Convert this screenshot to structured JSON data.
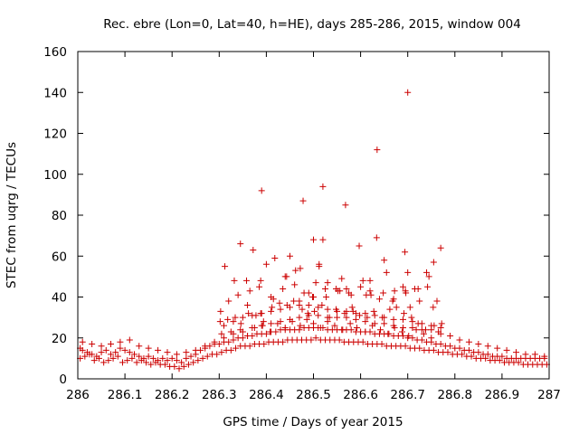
{
  "chart_data": {
    "type": "scatter",
    "title": "Rec. ebre (Lon=0, Lat=40, h=HE), days 285-286, 2015, window 004",
    "xlabel": "GPS time / Days of year 2015",
    "ylabel": "STEC from uqrg / TECUs",
    "xlim": [
      286,
      287
    ],
    "ylim": [
      0,
      160
    ],
    "xticks": [
      286,
      286.1,
      286.2,
      286.3,
      286.4,
      286.5,
      286.6,
      286.7,
      286.8,
      286.9,
      287
    ],
    "xtick_labels": [
      "286",
      "286.1",
      "286.2",
      "286.3",
      "286.4",
      "286.5",
      "286.6",
      "286.7",
      "286.8",
      "286.9",
      "287"
    ],
    "yticks": [
      0,
      20,
      40,
      60,
      80,
      100,
      120,
      140,
      160
    ],
    "ytick_labels": [
      "0",
      "20",
      "40",
      "60",
      "80",
      "100",
      "120",
      "140",
      "160"
    ],
    "grid": false,
    "marker": "+",
    "point_color": "#cc0000",
    "series": [
      {
        "x": [
          286.005,
          286.01,
          286.02,
          286.03,
          286.04,
          286.05,
          286.06,
          286.07,
          286.08,
          286.09,
          286.1,
          286.11,
          286.12,
          286.13,
          286.14,
          286.15,
          286.16,
          286.17,
          286.18,
          286.19,
          286.2,
          286.21,
          286.22,
          286.23,
          286.24,
          286.25,
          286.26,
          286.27,
          286.28,
          286.29,
          286.3,
          286.31,
          286.32,
          286.33,
          286.34,
          286.35,
          286.36,
          286.37,
          286.38,
          286.39,
          286.4,
          286.41,
          286.42,
          286.43,
          286.44,
          286.45,
          286.46,
          286.47,
          286.48,
          286.49,
          286.5,
          286.51,
          286.52,
          286.53,
          286.54,
          286.55,
          286.56,
          286.57,
          286.58,
          286.59,
          286.6,
          286.61,
          286.62,
          286.63,
          286.64,
          286.65,
          286.66,
          286.67,
          286.68,
          286.69,
          286.7,
          286.71,
          286.72,
          286.73,
          286.74,
          286.75,
          286.76,
          286.77,
          286.78,
          286.79,
          286.8,
          286.81,
          286.82,
          286.83,
          286.84,
          286.85,
          286.86,
          286.87,
          286.88,
          286.89,
          286.9,
          286.91,
          286.92,
          286.93,
          286.94,
          286.95,
          286.96,
          286.97,
          286.98,
          286.99,
          286.005,
          286.015,
          286.025,
          286.035,
          286.045,
          286.055,
          286.065,
          286.075,
          286.085,
          286.095,
          286.105,
          286.115,
          286.125,
          286.135,
          286.145,
          286.155,
          286.165,
          286.175,
          286.185,
          286.195,
          286.205,
          286.215,
          286.225,
          286.235,
          286.245,
          286.255,
          286.265,
          286.275,
          286.285,
          286.295,
          286.305,
          286.315,
          286.325,
          286.335,
          286.345,
          286.355,
          286.365,
          286.375,
          286.385,
          286.395,
          286.405,
          286.415,
          286.425,
          286.435,
          286.445,
          286.455,
          286.465,
          286.475,
          286.485,
          286.495,
          286.505,
          286.515,
          286.525,
          286.535,
          286.545,
          286.555,
          286.565,
          286.575,
          286.585,
          286.595,
          286.605,
          286.615,
          286.625,
          286.635,
          286.645,
          286.655,
          286.665,
          286.675,
          286.685,
          286.695,
          286.705,
          286.715,
          286.725,
          286.735,
          286.745,
          286.755,
          286.765,
          286.775,
          286.785,
          286.795,
          286.805,
          286.815,
          286.825,
          286.835,
          286.845,
          286.855,
          286.865,
          286.875,
          286.885,
          286.895,
          286.905,
          286.915,
          286.925,
          286.935,
          286.945,
          286.955,
          286.965,
          286.975,
          286.985,
          286.995,
          286.01,
          286.03,
          286.05,
          286.07,
          286.09,
          286.11,
          286.13,
          286.15,
          286.17,
          286.19,
          286.21,
          286.23,
          286.25,
          286.27,
          286.29,
          286.31,
          286.33,
          286.35,
          286.37,
          286.39,
          286.41,
          286.43,
          286.45,
          286.47,
          286.49,
          286.51,
          286.53,
          286.55,
          286.57,
          286.59,
          286.61,
          286.63,
          286.65,
          286.67,
          286.69,
          286.71,
          286.73,
          286.75,
          286.77,
          286.79,
          286.81,
          286.83,
          286.85,
          286.87,
          286.89,
          286.91,
          286.93,
          286.95,
          286.97,
          286.99,
          286.31,
          286.33,
          286.35,
          286.37,
          286.39,
          286.41,
          286.43,
          286.45,
          286.47,
          286.49,
          286.51,
          286.53,
          286.55,
          286.57,
          286.59,
          286.61,
          286.63,
          286.65,
          286.67,
          286.69,
          286.71,
          286.73,
          286.75,
          286.77,
          286.302,
          286.318,
          286.334,
          286.346,
          286.362,
          286.378,
          286.394,
          286.412,
          286.428,
          286.444,
          286.458,
          286.476,
          286.488,
          286.502,
          286.518,
          286.534,
          286.548,
          286.566,
          286.582,
          286.598,
          286.614,
          286.628,
          286.646,
          286.662,
          286.676,
          286.692,
          286.708,
          286.722,
          286.738,
          286.756,
          286.772,
          286.305,
          286.325,
          286.345,
          286.36,
          286.375,
          286.392,
          286.408,
          286.424,
          286.44,
          286.455,
          286.472,
          286.486,
          286.5,
          286.515,
          286.53,
          286.545,
          286.562,
          286.578,
          286.592,
          286.61,
          286.625,
          286.642,
          286.658,
          286.672,
          286.688,
          286.702,
          286.718,
          286.734,
          286.75,
          286.765,
          286.32,
          286.34,
          286.365,
          286.385,
          286.41,
          286.435,
          286.46,
          286.48,
          286.505,
          286.525,
          286.552,
          286.575,
          286.6,
          286.622,
          286.648,
          286.67,
          286.695,
          286.715,
          286.742,
          286.762,
          286.303,
          286.332,
          286.36,
          286.388,
          286.415,
          286.443,
          286.47,
          286.498,
          286.527,
          286.556,
          286.584,
          286.612,
          286.64,
          286.668,
          286.696,
          286.725,
          286.754,
          286.345,
          286.372,
          286.39,
          286.418,
          286.44,
          286.462,
          286.478,
          286.49,
          286.5,
          286.512,
          286.53,
          286.548,
          286.568,
          286.58,
          286.597,
          286.62,
          286.634,
          286.655,
          286.672,
          286.69,
          286.705,
          286.722,
          286.74,
          286.755,
          286.77,
          286.312,
          286.358,
          286.4,
          286.45,
          286.52,
          286.56,
          286.605,
          286.65,
          286.7,
          286.745,
          286.5,
          286.52,
          286.62,
          286.7,
          286.635,
          286.694,
          286.512,
          286.57,
          286.388,
          286.472
        ],
        "y": [
          15,
          14,
          13,
          12,
          11,
          13,
          14,
          12,
          13,
          15,
          14,
          13,
          12,
          11,
          10,
          11,
          10,
          9,
          10,
          9,
          10,
          9,
          8,
          10,
          11,
          12,
          14,
          15,
          16,
          17,
          17,
          18,
          18,
          19,
          20,
          20,
          21,
          21,
          22,
          22,
          22,
          23,
          23,
          24,
          24,
          24,
          24,
          24,
          25,
          25,
          25,
          25,
          25,
          24,
          24,
          24,
          24,
          24,
          24,
          23,
          23,
          23,
          23,
          22,
          22,
          22,
          22,
          21,
          21,
          21,
          20,
          20,
          19,
          19,
          18,
          18,
          17,
          17,
          16,
          16,
          15,
          15,
          14,
          14,
          13,
          13,
          12,
          12,
          11,
          11,
          11,
          10,
          10,
          10,
          10,
          10,
          10,
          10,
          10,
          10,
          10,
          11,
          12,
          9,
          10,
          8,
          9,
          10,
          11,
          8,
          9,
          10,
          8,
          9,
          8,
          7,
          8,
          7,
          7,
          6,
          6,
          5,
          6,
          7,
          8,
          9,
          10,
          11,
          12,
          12,
          13,
          14,
          14,
          15,
          16,
          16,
          16,
          17,
          17,
          17,
          18,
          18,
          18,
          18,
          19,
          19,
          19,
          19,
          19,
          19,
          20,
          19,
          19,
          19,
          19,
          19,
          18,
          18,
          18,
          18,
          18,
          17,
          17,
          17,
          17,
          16,
          16,
          16,
          16,
          16,
          15,
          15,
          15,
          14,
          14,
          14,
          13,
          13,
          13,
          12,
          12,
          12,
          11,
          11,
          10,
          10,
          10,
          9,
          9,
          9,
          8,
          8,
          8,
          8,
          7,
          7,
          7,
          7,
          7,
          7,
          18,
          17,
          16,
          17,
          18,
          19,
          16,
          15,
          14,
          13,
          12,
          13,
          14,
          16,
          18,
          20,
          22,
          23,
          25,
          26,
          27,
          28,
          29,
          30,
          31,
          31,
          30,
          30,
          30,
          29,
          28,
          27,
          27,
          26,
          25,
          25,
          24,
          24,
          22,
          21,
          19,
          18,
          17,
          16,
          15,
          14,
          13,
          12,
          12,
          11,
          26,
          28,
          30,
          31,
          32,
          33,
          34,
          35,
          36,
          36,
          35,
          34,
          33,
          33,
          32,
          32,
          31,
          30,
          29,
          29,
          28,
          27,
          26,
          25,
          28,
          29,
          30,
          27,
          32,
          31,
          28,
          35,
          37,
          36,
          38,
          34,
          32,
          33,
          36,
          30,
          34,
          32,
          35,
          31,
          30,
          33,
          30,
          34,
          35,
          32,
          30,
          27,
          24,
          26,
          27,
          22,
          23,
          24,
          21,
          25,
          26,
          23,
          27,
          25,
          28,
          26,
          29,
          27,
          25,
          28,
          26,
          24,
          27,
          25,
          23,
          26,
          24,
          22,
          25,
          23,
          21,
          24,
          22,
          20,
          23,
          38,
          41,
          43,
          45,
          40,
          44,
          46,
          42,
          47,
          44,
          43,
          42,
          45,
          41,
          42,
          39,
          43,
          44,
          45,
          38,
          33,
          48,
          36,
          48,
          39,
          50,
          38,
          40,
          40,
          43,
          33,
          41,
          39,
          38,
          42,
          38,
          35,
          66,
          63,
          92,
          59,
          50,
          53,
          87,
          42,
          40,
          55,
          47,
          44,
          85,
          41,
          65,
          43,
          69,
          52,
          43,
          45,
          35,
          44,
          52,
          57,
          64,
          55,
          48,
          56,
          60,
          68,
          49,
          48,
          58,
          52,
          50,
          68,
          94,
          48,
          140,
          112,
          62,
          56,
          44,
          32,
          54
        ]
      }
    ]
  }
}
